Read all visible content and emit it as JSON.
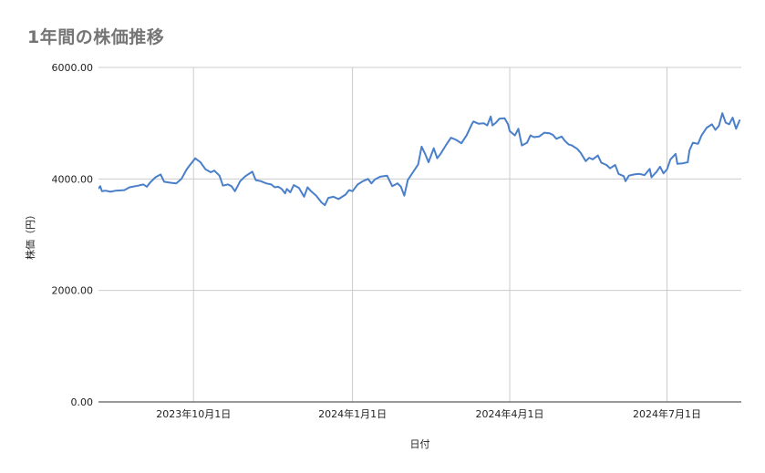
{
  "chart_data": {
    "type": "line",
    "title": "1年間の株価推移",
    "xlabel": "日付",
    "ylabel": "株価（円）",
    "ylim": [
      0,
      6000
    ],
    "y_ticks": [
      "0.00",
      "2000.00",
      "4000.00",
      "6000.00"
    ],
    "xlim": [
      "2023-08-07",
      "2024-08-13"
    ],
    "x_ticks": [
      {
        "date": "2023-10-01",
        "label": "2023年10月1日"
      },
      {
        "date": "2024-01-01",
        "label": "2024年1月1日"
      },
      {
        "date": "2024-04-01",
        "label": "2024年4月1日"
      },
      {
        "date": "2024-07-01",
        "label": "2024年7月1日"
      }
    ],
    "grid": true,
    "legend": "none",
    "series": [
      {
        "color": "#4a7fc9",
        "points": [
          [
            "2023-08-07",
            3830
          ],
          [
            "2023-08-08",
            3870
          ],
          [
            "2023-08-09",
            3780
          ],
          [
            "2023-08-11",
            3790
          ],
          [
            "2023-08-14",
            3770
          ],
          [
            "2023-08-17",
            3790
          ],
          [
            "2023-08-22",
            3800
          ],
          [
            "2023-08-25",
            3850
          ],
          [
            "2023-08-30",
            3880
          ],
          [
            "2023-09-02",
            3900
          ],
          [
            "2023-09-04",
            3860
          ],
          [
            "2023-09-06",
            3940
          ],
          [
            "2023-09-09",
            4030
          ],
          [
            "2023-09-12",
            4080
          ],
          [
            "2023-09-14",
            3950
          ],
          [
            "2023-09-18",
            3930
          ],
          [
            "2023-09-21",
            3920
          ],
          [
            "2023-09-24",
            4000
          ],
          [
            "2023-09-27",
            4170
          ],
          [
            "2023-09-29",
            4250
          ],
          [
            "2023-10-02",
            4370
          ],
          [
            "2023-10-05",
            4300
          ],
          [
            "2023-10-08",
            4170
          ],
          [
            "2023-10-11",
            4120
          ],
          [
            "2023-10-13",
            4150
          ],
          [
            "2023-10-16",
            4060
          ],
          [
            "2023-10-18",
            3880
          ],
          [
            "2023-10-21",
            3900
          ],
          [
            "2023-10-23",
            3870
          ],
          [
            "2023-10-25",
            3780
          ],
          [
            "2023-10-28",
            3960
          ],
          [
            "2023-10-31",
            4050
          ],
          [
            "2023-11-04",
            4130
          ],
          [
            "2023-11-06",
            3980
          ],
          [
            "2023-11-09",
            3960
          ],
          [
            "2023-11-12",
            3920
          ],
          [
            "2023-11-15",
            3900
          ],
          [
            "2023-11-17",
            3850
          ],
          [
            "2023-11-19",
            3860
          ],
          [
            "2023-11-21",
            3820
          ],
          [
            "2023-11-23",
            3740
          ],
          [
            "2023-11-24",
            3820
          ],
          [
            "2023-11-26",
            3760
          ],
          [
            "2023-11-28",
            3890
          ],
          [
            "2023-12-01",
            3840
          ],
          [
            "2023-12-04",
            3680
          ],
          [
            "2023-12-06",
            3850
          ],
          [
            "2023-12-08",
            3780
          ],
          [
            "2023-12-11",
            3700
          ],
          [
            "2023-12-14",
            3580
          ],
          [
            "2023-12-16",
            3530
          ],
          [
            "2023-12-18",
            3660
          ],
          [
            "2023-12-21",
            3680
          ],
          [
            "2023-12-24",
            3640
          ],
          [
            "2023-12-28",
            3720
          ],
          [
            "2023-12-30",
            3800
          ],
          [
            "2024-01-01",
            3780
          ],
          [
            "2024-01-04",
            3900
          ],
          [
            "2024-01-07",
            3960
          ],
          [
            "2024-01-10",
            4000
          ],
          [
            "2024-01-12",
            3920
          ],
          [
            "2024-01-14",
            3990
          ],
          [
            "2024-01-17",
            4040
          ],
          [
            "2024-01-21",
            4060
          ],
          [
            "2024-01-24",
            3870
          ],
          [
            "2024-01-27",
            3920
          ],
          [
            "2024-01-29",
            3860
          ],
          [
            "2024-01-31",
            3700
          ],
          [
            "2024-02-02",
            3980
          ],
          [
            "2024-02-05",
            4120
          ],
          [
            "2024-02-08",
            4260
          ],
          [
            "2024-02-10",
            4580
          ],
          [
            "2024-02-12",
            4450
          ],
          [
            "2024-02-14",
            4300
          ],
          [
            "2024-02-17",
            4550
          ],
          [
            "2024-02-19",
            4370
          ],
          [
            "2024-02-21",
            4450
          ],
          [
            "2024-02-24",
            4600
          ],
          [
            "2024-02-27",
            4740
          ],
          [
            "2024-03-01",
            4700
          ],
          [
            "2024-03-04",
            4640
          ],
          [
            "2024-03-07",
            4780
          ],
          [
            "2024-03-10",
            4980
          ],
          [
            "2024-03-11",
            5030
          ],
          [
            "2024-03-14",
            4990
          ],
          [
            "2024-03-17",
            5000
          ],
          [
            "2024-03-19",
            4960
          ],
          [
            "2024-03-21",
            5120
          ],
          [
            "2024-03-22",
            4960
          ],
          [
            "2024-03-24",
            5010
          ],
          [
            "2024-03-26",
            5080
          ],
          [
            "2024-03-29",
            5090
          ],
          [
            "2024-03-31",
            4980
          ],
          [
            "2024-04-01",
            4860
          ],
          [
            "2024-04-04",
            4780
          ],
          [
            "2024-04-06",
            4900
          ],
          [
            "2024-04-08",
            4600
          ],
          [
            "2024-04-11",
            4650
          ],
          [
            "2024-04-13",
            4780
          ],
          [
            "2024-04-15",
            4750
          ],
          [
            "2024-04-18",
            4760
          ],
          [
            "2024-04-21",
            4830
          ],
          [
            "2024-04-24",
            4820
          ],
          [
            "2024-04-26",
            4790
          ],
          [
            "2024-04-28",
            4720
          ],
          [
            "2024-05-01",
            4760
          ],
          [
            "2024-05-03",
            4680
          ],
          [
            "2024-05-05",
            4620
          ],
          [
            "2024-05-07",
            4600
          ],
          [
            "2024-05-10",
            4540
          ],
          [
            "2024-05-12",
            4470
          ],
          [
            "2024-05-15",
            4320
          ],
          [
            "2024-05-17",
            4380
          ],
          [
            "2024-05-19",
            4350
          ],
          [
            "2024-05-22",
            4420
          ],
          [
            "2024-05-24",
            4290
          ],
          [
            "2024-05-27",
            4250
          ],
          [
            "2024-05-29",
            4190
          ],
          [
            "2024-06-01",
            4250
          ],
          [
            "2024-06-03",
            4090
          ],
          [
            "2024-06-06",
            4050
          ],
          [
            "2024-06-07",
            3960
          ],
          [
            "2024-06-09",
            4060
          ],
          [
            "2024-06-12",
            4080
          ],
          [
            "2024-06-15",
            4090
          ],
          [
            "2024-06-18",
            4070
          ],
          [
            "2024-06-21",
            4180
          ],
          [
            "2024-06-22",
            4030
          ],
          [
            "2024-06-25",
            4130
          ],
          [
            "2024-06-27",
            4220
          ],
          [
            "2024-06-29",
            4100
          ],
          [
            "2024-07-01",
            4170
          ],
          [
            "2024-07-03",
            4350
          ],
          [
            "2024-07-06",
            4450
          ],
          [
            "2024-07-07",
            4270
          ],
          [
            "2024-07-10",
            4280
          ],
          [
            "2024-07-13",
            4300
          ],
          [
            "2024-07-14",
            4510
          ],
          [
            "2024-07-16",
            4650
          ],
          [
            "2024-07-19",
            4630
          ],
          [
            "2024-07-21",
            4780
          ],
          [
            "2024-07-24",
            4920
          ],
          [
            "2024-07-27",
            4980
          ],
          [
            "2024-07-29",
            4880
          ],
          [
            "2024-07-31",
            4950
          ],
          [
            "2024-08-02",
            5180
          ],
          [
            "2024-08-04",
            5010
          ],
          [
            "2024-08-06",
            4980
          ],
          [
            "2024-08-08",
            5100
          ],
          [
            "2024-08-10",
            4900
          ],
          [
            "2024-08-12",
            5050
          ]
        ]
      }
    ]
  }
}
